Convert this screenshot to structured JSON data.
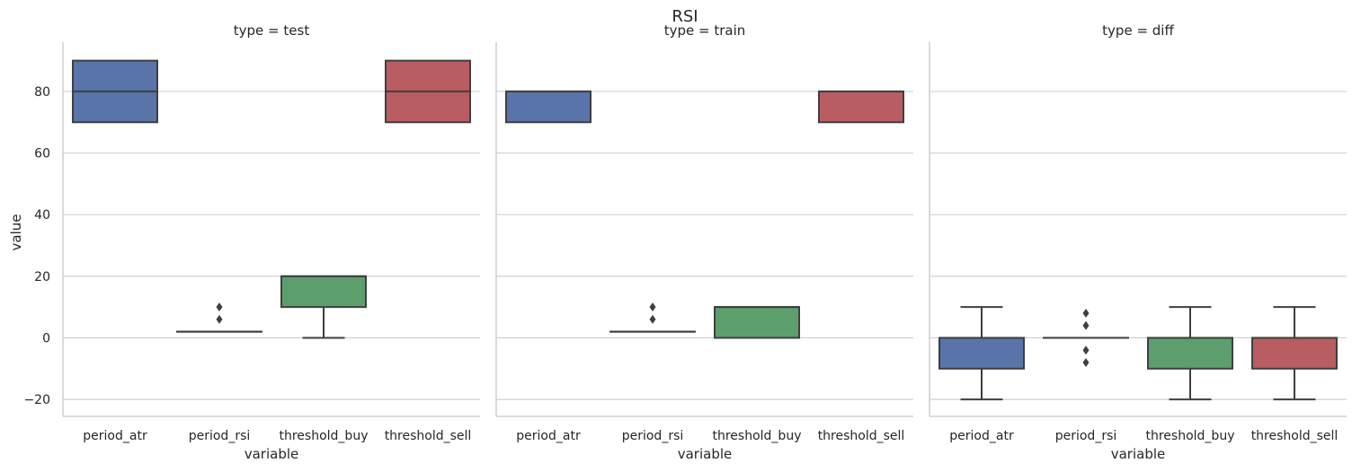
{
  "chart_data": {
    "type": "box",
    "title": "RSI",
    "xlabel": "variable",
    "ylabel": "value",
    "ylim": [
      -25.5,
      96
    ],
    "yticks": [
      -20,
      0,
      20,
      40,
      60,
      80
    ],
    "grid": "horizontal",
    "categories": [
      "period_atr",
      "period_rsi",
      "threshold_buy",
      "threshold_sell"
    ],
    "colors": {
      "period_atr": "#5874a8",
      "period_rsi": "#dd8452",
      "threshold_buy": "#5d9f6c",
      "threshold_sell": "#b95d62",
      "box_edge": "#3f3f3f",
      "grid": "#d0d0d0",
      "spine": "#cfcfcf"
    },
    "panels": [
      {
        "title": "type = test",
        "boxes": [
          {
            "category": "period_atr",
            "q1": 70,
            "median": 80,
            "q3": 90,
            "whisker_low": 70,
            "whisker_high": 90,
            "outliers": []
          },
          {
            "category": "period_rsi",
            "q1": 2,
            "median": 2,
            "q3": 2,
            "whisker_low": 2,
            "whisker_high": 2,
            "outliers": [
              6,
              10
            ]
          },
          {
            "category": "threshold_buy",
            "q1": 10,
            "median": 20,
            "q3": 20,
            "whisker_low": 0,
            "whisker_high": 20,
            "outliers": []
          },
          {
            "category": "threshold_sell",
            "q1": 70,
            "median": 80,
            "q3": 90,
            "whisker_low": 70,
            "whisker_high": 90,
            "outliers": []
          }
        ]
      },
      {
        "title": "type = train",
        "boxes": [
          {
            "category": "period_atr",
            "q1": 70,
            "median": 80,
            "q3": 80,
            "whisker_low": 70,
            "whisker_high": 80,
            "outliers": []
          },
          {
            "category": "period_rsi",
            "q1": 2,
            "median": 2,
            "q3": 2,
            "whisker_low": 2,
            "whisker_high": 2,
            "outliers": [
              6,
              10
            ]
          },
          {
            "category": "threshold_buy",
            "q1": 0,
            "median": 10,
            "q3": 10,
            "whisker_low": 0,
            "whisker_high": 10,
            "outliers": []
          },
          {
            "category": "threshold_sell",
            "q1": 70,
            "median": 80,
            "q3": 80,
            "whisker_low": 70,
            "whisker_high": 80,
            "outliers": []
          }
        ]
      },
      {
        "title": "type = diff",
        "boxes": [
          {
            "category": "period_atr",
            "q1": -10,
            "median": 0,
            "q3": 0,
            "whisker_low": -20,
            "whisker_high": 10,
            "outliers": []
          },
          {
            "category": "period_rsi",
            "q1": 0,
            "median": 0,
            "q3": 0,
            "whisker_low": 0,
            "whisker_high": 0,
            "outliers": [
              -8,
              -4,
              4,
              8
            ]
          },
          {
            "category": "threshold_buy",
            "q1": -10,
            "median": 0,
            "q3": 0,
            "whisker_low": -20,
            "whisker_high": 10,
            "outliers": []
          },
          {
            "category": "threshold_sell",
            "q1": -10,
            "median": 0,
            "q3": 0,
            "whisker_low": -20,
            "whisker_high": 10,
            "outliers": []
          }
        ]
      }
    ]
  }
}
